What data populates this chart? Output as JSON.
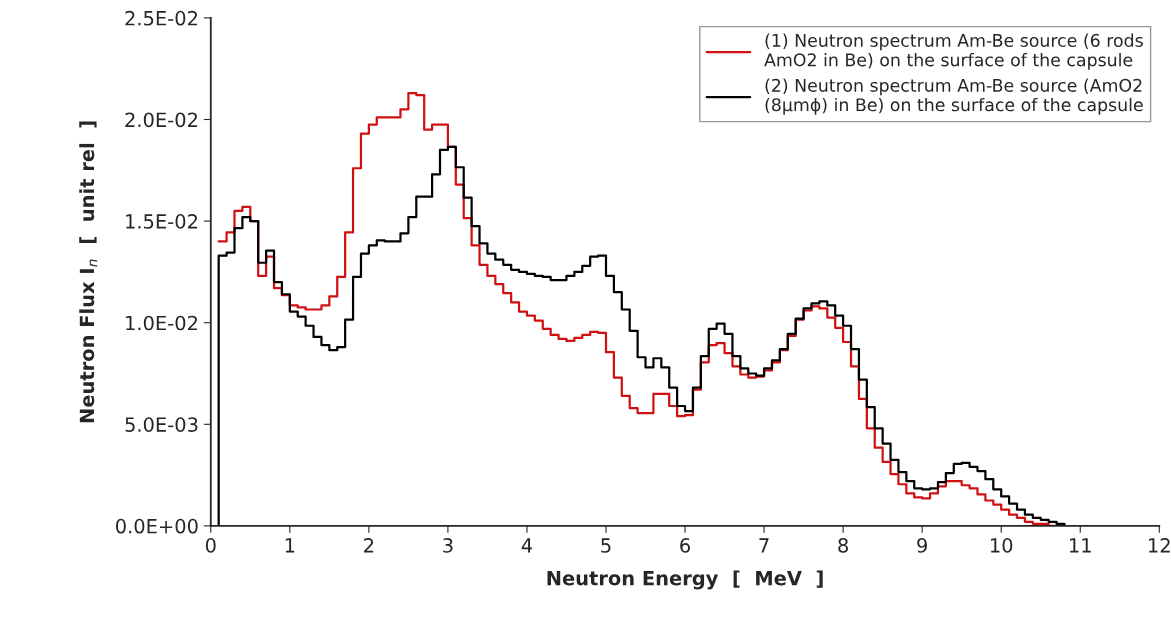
{
  "chart_data": {
    "type": "step",
    "xlabel": "Neutron Energy  [  MeV  ]",
    "ylabel": "Neutron Flux I$_{n}$  [  unit rel  ]",
    "xlim": [
      0,
      12
    ],
    "xticks": [
      0,
      1,
      2,
      3,
      4,
      5,
      6,
      7,
      8,
      9,
      10,
      11,
      12
    ],
    "ylim": [
      0,
      0.025
    ],
    "yticks": [
      {
        "value": 0,
        "label": "0.0E+00"
      },
      {
        "value": 0.005,
        "label": "5.0E-03"
      },
      {
        "value": 0.01,
        "label": "1.0E-02"
      },
      {
        "value": 0.015,
        "label": "1.5E-02"
      },
      {
        "value": 0.02,
        "label": "2.0E-02"
      },
      {
        "value": 0.025,
        "label": "2.5E-02"
      }
    ],
    "grid": false,
    "legend": "top right",
    "series": [
      {
        "name": "(1) Neutron spectrum Am-Be source (6 rods\nAmO2 in Be) on the surface of the capsule",
        "color": "#d01010",
        "x": [
          0.1,
          0.2,
          0.3,
          0.4,
          0.5,
          0.6,
          0.7,
          0.8,
          0.9,
          1.0,
          1.1,
          1.2,
          1.3,
          1.4,
          1.5,
          1.6,
          1.7,
          1.8,
          1.9,
          2.0,
          2.1,
          2.2,
          2.3,
          2.4,
          2.5,
          2.6,
          2.7,
          2.8,
          2.9,
          3.0,
          3.1,
          3.2,
          3.3,
          3.4,
          3.5,
          3.6,
          3.7,
          3.8,
          3.9,
          4.0,
          4.1,
          4.2,
          4.3,
          4.4,
          4.5,
          4.6,
          4.7,
          4.8,
          4.9,
          5.0,
          5.1,
          5.2,
          5.3,
          5.4,
          5.5,
          5.6,
          5.7,
          5.8,
          5.9,
          6.0,
          6.1,
          6.2,
          6.3,
          6.4,
          6.5,
          6.6,
          6.7,
          6.8,
          6.9,
          7.0,
          7.1,
          7.2,
          7.3,
          7.4,
          7.5,
          7.6,
          7.7,
          7.8,
          7.9,
          8.0,
          8.1,
          8.2,
          8.3,
          8.4,
          8.5,
          8.6,
          8.7,
          8.8,
          8.9,
          9.0,
          9.1,
          9.2,
          9.3,
          9.4,
          9.5,
          9.6,
          9.7,
          9.8,
          9.9,
          10.0,
          10.1,
          10.2,
          10.3,
          10.4,
          10.5,
          10.6,
          10.7
        ],
        "values": [
          0.014,
          0.01445,
          0.0155,
          0.0157,
          0.015,
          0.0123,
          0.01325,
          0.0117,
          0.01135,
          0.01085,
          0.01075,
          0.01065,
          0.01065,
          0.01085,
          0.0113,
          0.01225,
          0.01445,
          0.0176,
          0.0193,
          0.01975,
          0.0201,
          0.0201,
          0.0201,
          0.0205,
          0.0213,
          0.0212,
          0.0195,
          0.01975,
          0.01975,
          0.01865,
          0.0168,
          0.01515,
          0.0138,
          0.01285,
          0.0123,
          0.0119,
          0.01145,
          0.011,
          0.01055,
          0.01035,
          0.0101,
          0.0097,
          0.0094,
          0.0092,
          0.0091,
          0.00925,
          0.0094,
          0.00955,
          0.0095,
          0.00855,
          0.0073,
          0.0064,
          0.0058,
          0.00555,
          0.00555,
          0.0065,
          0.0065,
          0.0059,
          0.0054,
          0.00545,
          0.0067,
          0.00805,
          0.0089,
          0.009,
          0.0085,
          0.00785,
          0.00745,
          0.0073,
          0.00735,
          0.00765,
          0.00805,
          0.00865,
          0.00935,
          0.01015,
          0.0106,
          0.0108,
          0.0107,
          0.01025,
          0.00975,
          0.00905,
          0.00785,
          0.00625,
          0.0048,
          0.00385,
          0.00315,
          0.00255,
          0.00205,
          0.0016,
          0.0014,
          0.00135,
          0.0016,
          0.00195,
          0.0022,
          0.0022,
          0.002,
          0.00185,
          0.00155,
          0.00125,
          0.00105,
          0.0008,
          0.00055,
          0.0004,
          0.0002,
          0.0001,
          0.0001,
          0,
          0
        ]
      },
      {
        "name": "(2) Neutron spectrum Am-Be source (AmO2\n(8μmϕ) in Be) on the surface of the capsule",
        "color": "#000000",
        "x": [
          0.1,
          0.1,
          0.2,
          0.3,
          0.4,
          0.5,
          0.6,
          0.7,
          0.8,
          0.9,
          1.0,
          1.1,
          1.2,
          1.3,
          1.4,
          1.5,
          1.6,
          1.7,
          1.8,
          1.9,
          2.0,
          2.1,
          2.2,
          2.3,
          2.4,
          2.5,
          2.6,
          2.7,
          2.8,
          2.9,
          3.0,
          3.1,
          3.2,
          3.3,
          3.4,
          3.5,
          3.6,
          3.7,
          3.8,
          3.9,
          4.0,
          4.1,
          4.2,
          4.3,
          4.4,
          4.5,
          4.6,
          4.7,
          4.8,
          4.9,
          5.0,
          5.1,
          5.2,
          5.3,
          5.4,
          5.5,
          5.6,
          5.7,
          5.8,
          5.9,
          6.0,
          6.1,
          6.2,
          6.3,
          6.4,
          6.5,
          6.6,
          6.7,
          6.8,
          6.9,
          7.0,
          7.1,
          7.2,
          7.3,
          7.4,
          7.5,
          7.6,
          7.7,
          7.8,
          7.9,
          8.0,
          8.1,
          8.2,
          8.3,
          8.4,
          8.5,
          8.6,
          8.7,
          8.8,
          8.9,
          9.0,
          9.1,
          9.2,
          9.3,
          9.4,
          9.5,
          9.6,
          9.7,
          9.8,
          9.9,
          10.0,
          10.1,
          10.2,
          10.3,
          10.4,
          10.5,
          10.6,
          10.7,
          10.8
        ],
        "values": [
          0,
          0.0133,
          0.01345,
          0.01465,
          0.0152,
          0.015,
          0.01295,
          0.01355,
          0.012,
          0.0114,
          0.01055,
          0.0103,
          0.00985,
          0.0093,
          0.0089,
          0.00865,
          0.0088,
          0.01015,
          0.01225,
          0.0134,
          0.0138,
          0.01405,
          0.014,
          0.014,
          0.0144,
          0.0152,
          0.0162,
          0.0162,
          0.0173,
          0.0185,
          0.01865,
          0.01765,
          0.01615,
          0.01475,
          0.0139,
          0.0134,
          0.0131,
          0.01285,
          0.0126,
          0.0125,
          0.0124,
          0.0123,
          0.01225,
          0.0121,
          0.0121,
          0.0123,
          0.0125,
          0.0128,
          0.01325,
          0.0133,
          0.0123,
          0.0115,
          0.01065,
          0.0096,
          0.0083,
          0.0078,
          0.00825,
          0.0078,
          0.0068,
          0.0059,
          0.00565,
          0.0068,
          0.00835,
          0.0097,
          0.00995,
          0.00945,
          0.00835,
          0.00775,
          0.0075,
          0.0074,
          0.00775,
          0.00815,
          0.0087,
          0.00945,
          0.0102,
          0.0107,
          0.01095,
          0.01105,
          0.01085,
          0.01035,
          0.00985,
          0.0087,
          0.0072,
          0.00585,
          0.0048,
          0.00405,
          0.00325,
          0.00265,
          0.0022,
          0.00185,
          0.0018,
          0.00185,
          0.00215,
          0.0026,
          0.00305,
          0.0031,
          0.0029,
          0.0027,
          0.0023,
          0.0018,
          0.00145,
          0.0011,
          0.0008,
          0.00055,
          0.0004,
          0.0003,
          0.0002,
          0.0001,
          0
        ]
      }
    ]
  }
}
